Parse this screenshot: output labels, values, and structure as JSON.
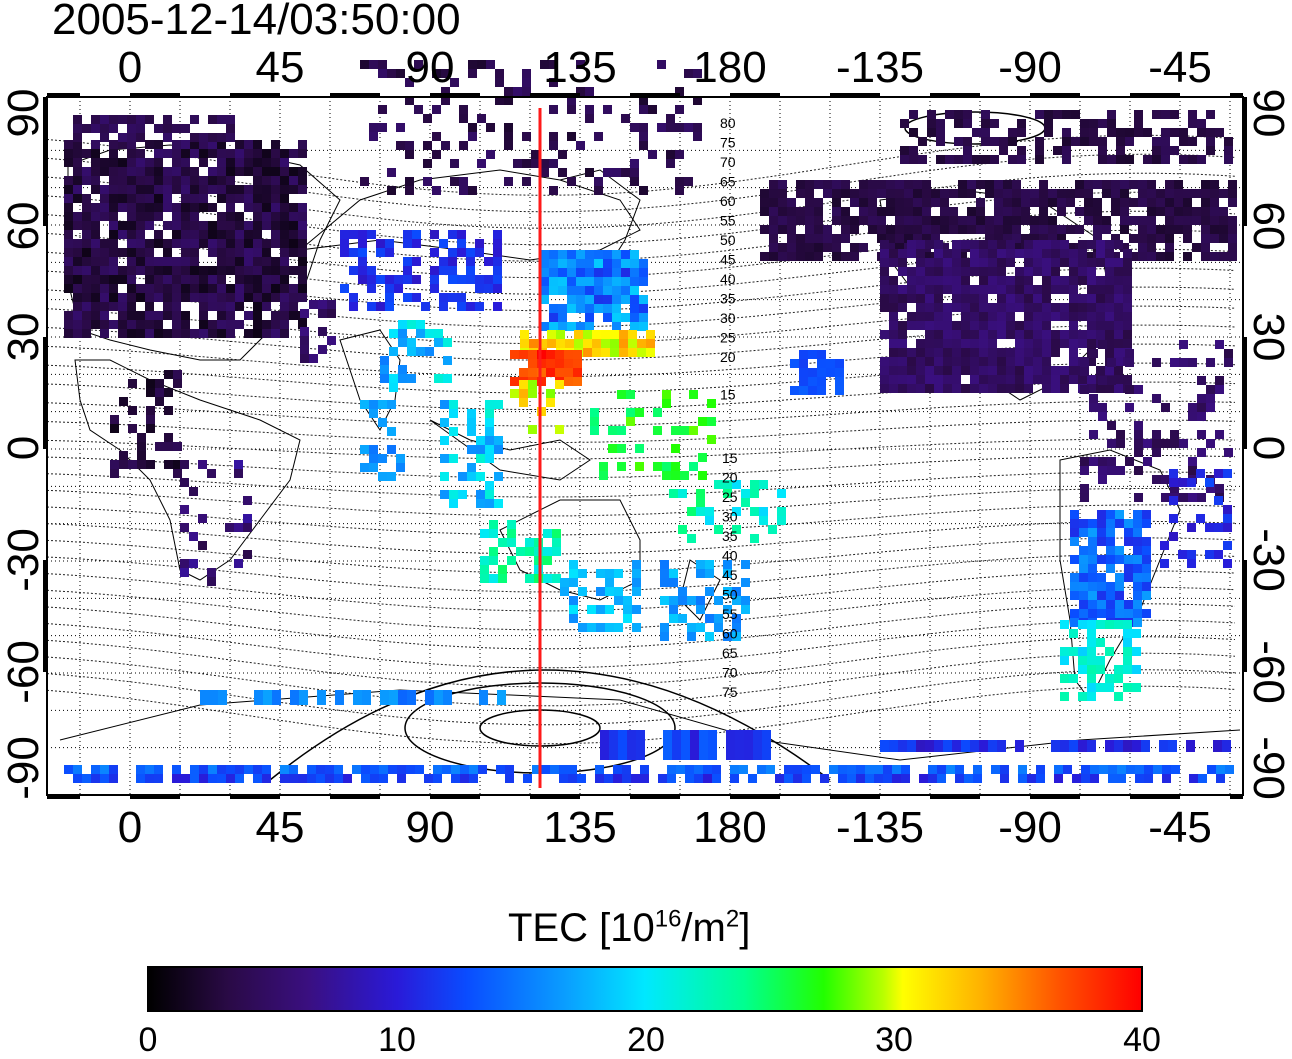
{
  "timestamp": "2005-12-14/03:50:00",
  "map": {
    "x_ticks": [
      "0",
      "45",
      "90",
      "135",
      "180",
      "-135",
      "-90",
      "-45"
    ],
    "y_ticks_left": [
      "90",
      "60",
      "30",
      "0",
      "-30",
      "-60",
      "-90"
    ],
    "y_ticks_right": [
      "90",
      "60",
      "30",
      "0",
      "-30",
      "-60",
      "-90"
    ],
    "contour_labels_north": [
      "80",
      "75",
      "70",
      "65",
      "60",
      "55",
      "50",
      "45",
      "40",
      "35",
      "30",
      "25",
      "20",
      "15"
    ],
    "contour_labels_south": [
      "15",
      "20",
      "25",
      "30",
      "35",
      "40",
      "45",
      "50",
      "55",
      "60",
      "65",
      "70",
      "75"
    ],
    "meridian_longitude": 123
  },
  "colorbar": {
    "title_main": "TEC  [10",
    "title_exp1": "16",
    "title_mid": "/m",
    "title_exp2": "2",
    "title_end": "]",
    "ticks": [
      "0",
      "10",
      "20",
      "30",
      "40"
    ],
    "min": 0,
    "max": 40
  }
}
